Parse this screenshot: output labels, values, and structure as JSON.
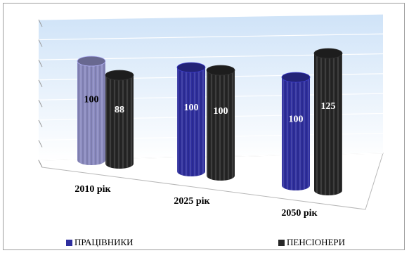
{
  "chart_data": {
    "type": "bar",
    "categories": [
      "2010 рік",
      "2025 рік",
      "2050 рік"
    ],
    "series": [
      {
        "name": "ПРАЦІВНИКИ",
        "values": [
          100,
          100,
          100
        ],
        "color": "#2e2e9e"
      },
      {
        "name": "ПЕНСІОНЕРИ",
        "values": [
          88,
          100,
          125
        ],
        "color": "#262626"
      }
    ],
    "first_bar_color": "#8a8ac0",
    "ylim": [
      0,
      150
    ],
    "grid": true,
    "legend_position": "bottom",
    "style": "3d-cylinder"
  }
}
